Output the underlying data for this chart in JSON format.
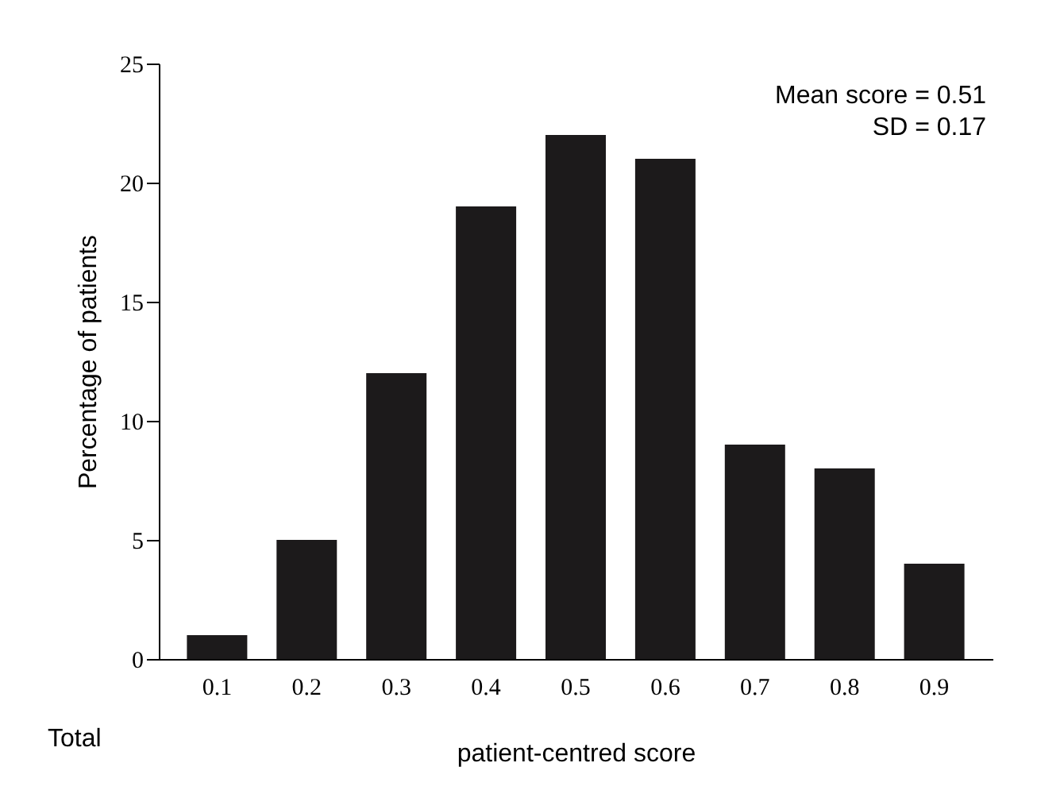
{
  "chart_data": {
    "type": "bar",
    "categories": [
      "0.1",
      "0.2",
      "0.3",
      "0.4",
      "0.5",
      "0.6",
      "0.7",
      "0.8",
      "0.9"
    ],
    "series": [
      {
        "color": "#1c1a1b",
        "values": [
          1,
          5,
          12,
          19,
          22,
          21,
          9,
          8,
          4
        ]
      }
    ],
    "xlabel": "patient-centred score",
    "ylabel": "Percentage of patients",
    "ylim": [
      0,
      25
    ],
    "yticks": [
      0,
      5,
      10,
      15,
      20,
      25
    ],
    "grid": false,
    "annotations": [
      "Mean score = 0.51",
      "SD = 0.17",
      "Total"
    ]
  }
}
